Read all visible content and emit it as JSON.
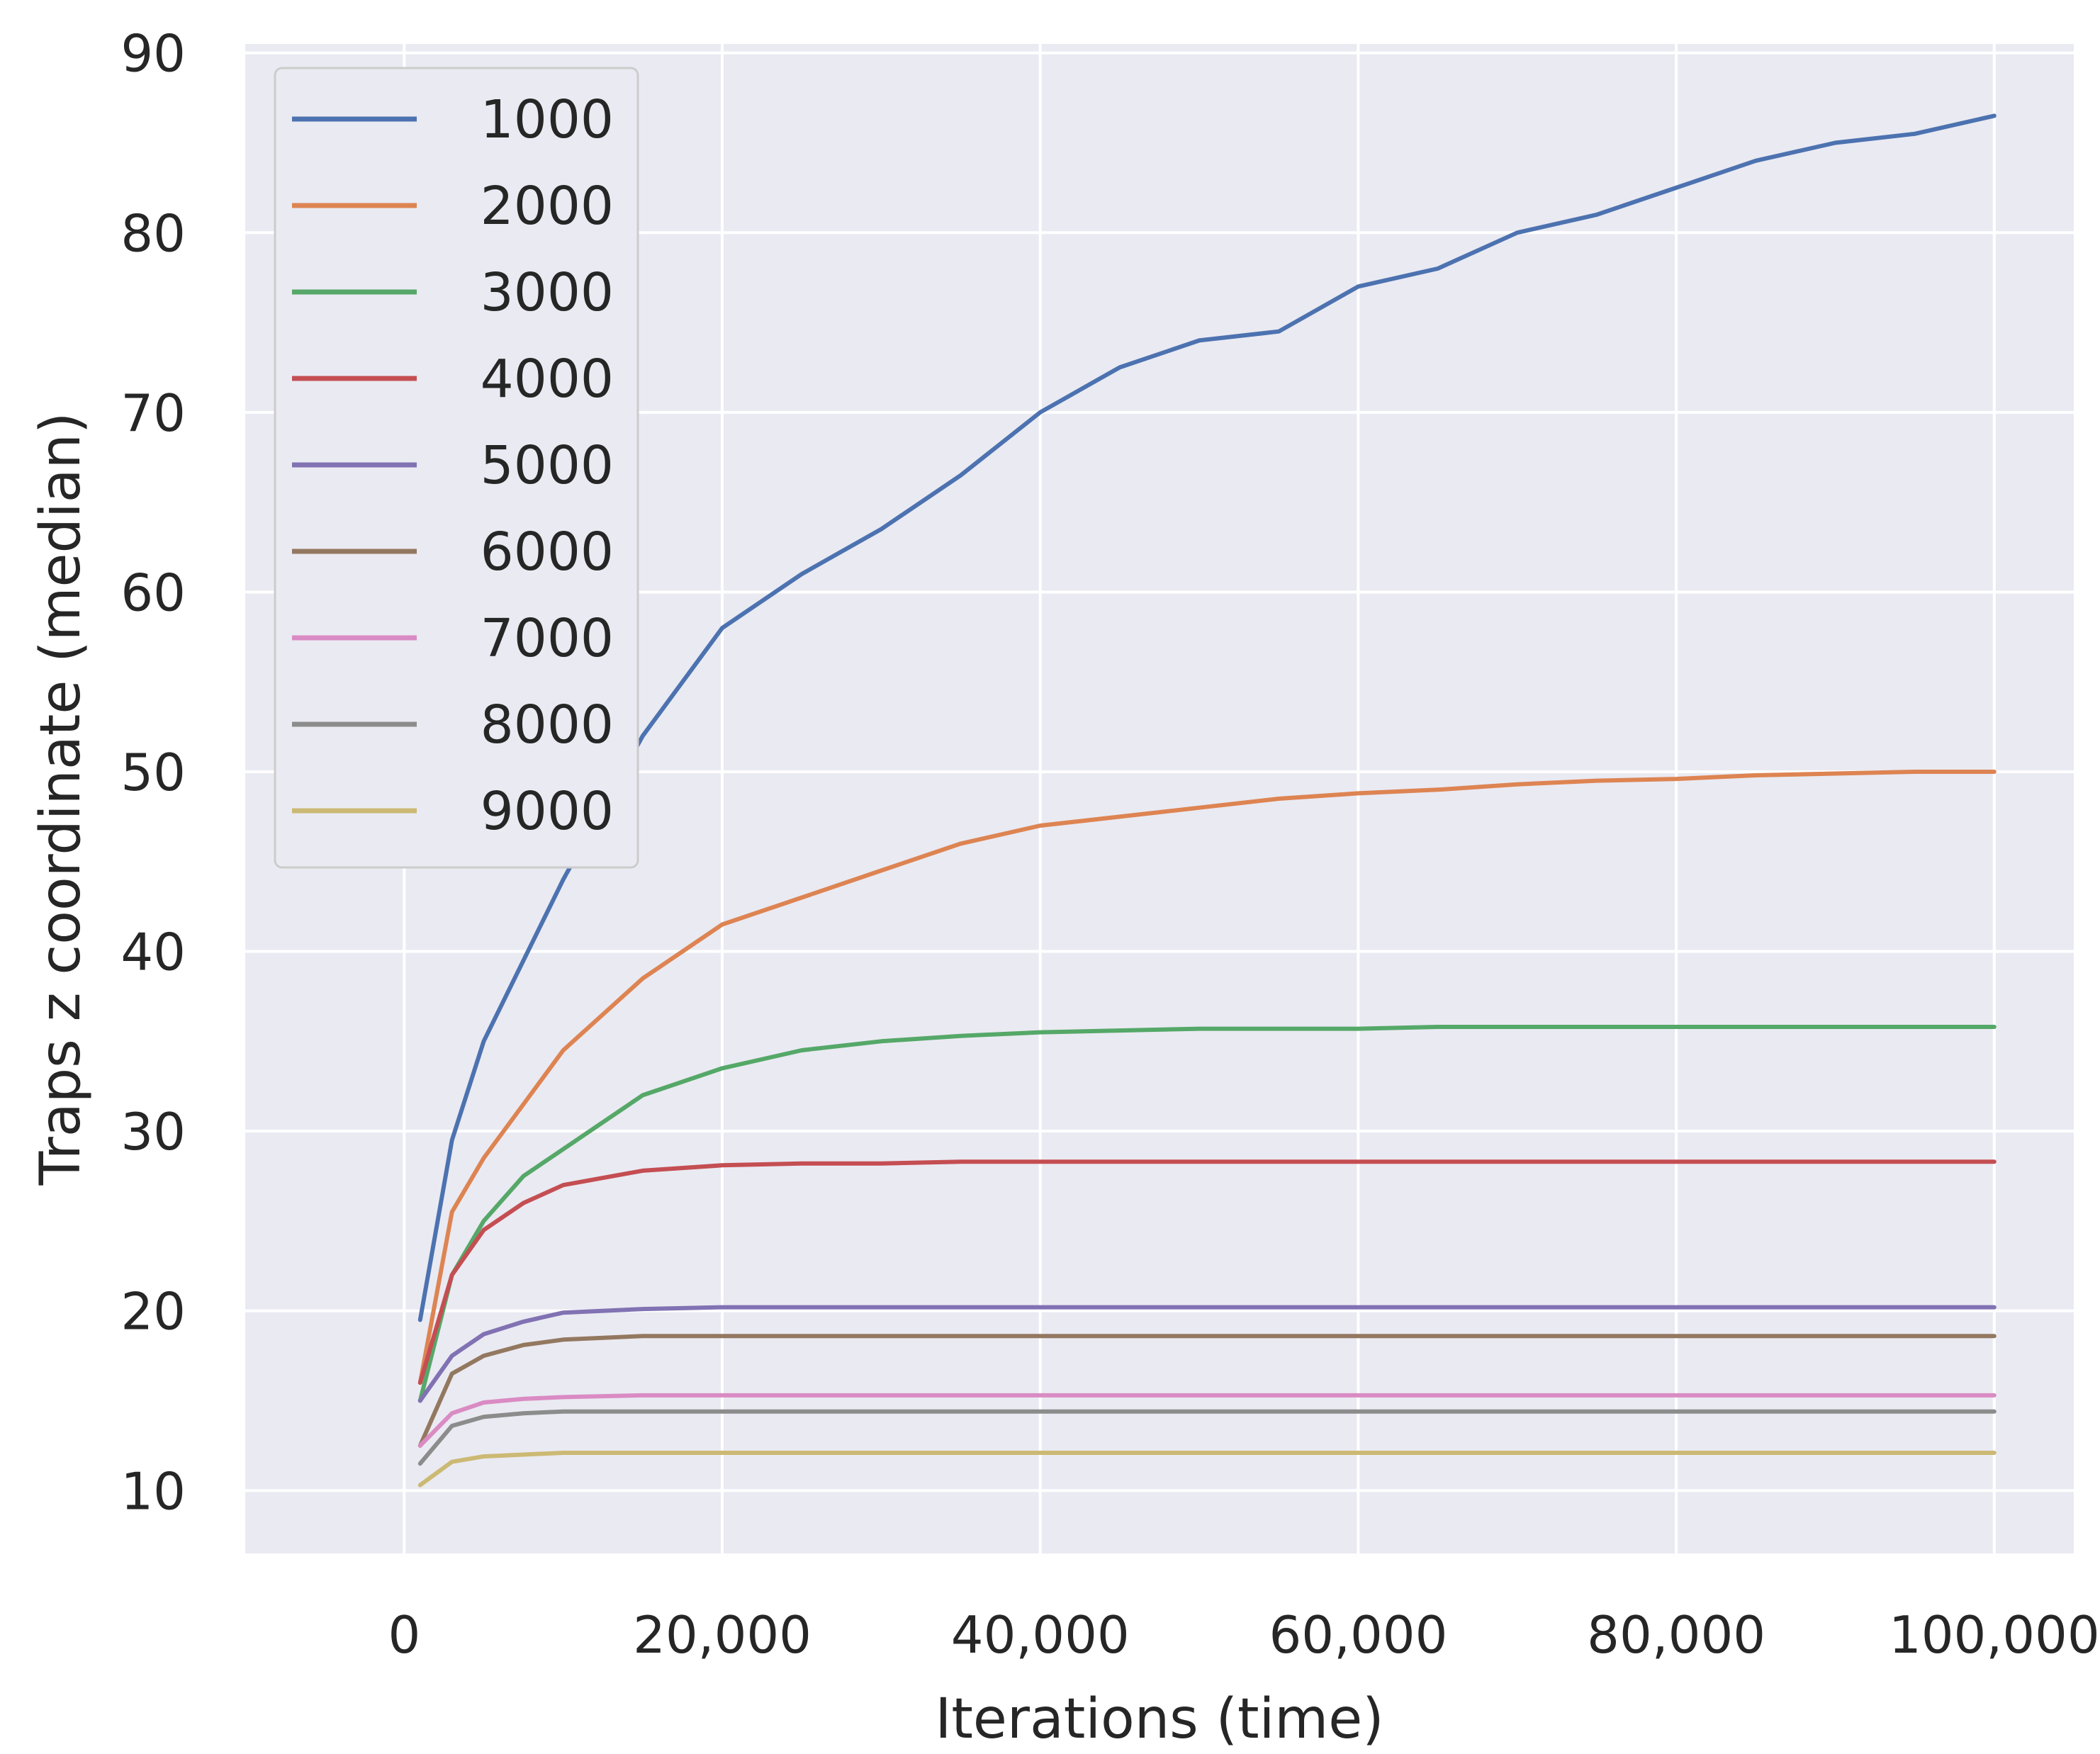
{
  "chart_data": {
    "type": "line",
    "title": "",
    "xlabel": "Iterations (time)",
    "ylabel": "Traps z coordinate (median)",
    "xlim": [
      -10000,
      105000
    ],
    "ylim": [
      6.5,
      90.5
    ],
    "xticks": [
      0,
      20000,
      40000,
      60000,
      80000,
      100000
    ],
    "xtick_labels": [
      "0",
      "20,000",
      "40,000",
      "60,000",
      "80,000",
      "100,000"
    ],
    "yticks": [
      10,
      20,
      30,
      40,
      50,
      60,
      70,
      80,
      90
    ],
    "ytick_labels": [
      "10",
      "20",
      "30",
      "40",
      "50",
      "60",
      "70",
      "80",
      "90"
    ],
    "grid": true,
    "legend": "upper-left",
    "x": [
      1000,
      3000,
      5000,
      7500,
      10000,
      15000,
      20000,
      25000,
      30000,
      35000,
      40000,
      45000,
      50000,
      55000,
      60000,
      65000,
      70000,
      75000,
      80000,
      85000,
      90000,
      95000,
      100000
    ],
    "series": [
      {
        "name": "1000",
        "color": "#4c72b0",
        "values": [
          19.5,
          29.5,
          35,
          39.5,
          44,
          52,
          58,
          61,
          63.5,
          66.5,
          70,
          72.5,
          74,
          74.5,
          77,
          78,
          80,
          81,
          82.5,
          84,
          85,
          85.5,
          86.5
        ]
      },
      {
        "name": "2000",
        "color": "#dd8452",
        "values": [
          16,
          25.5,
          28.5,
          31.5,
          34.5,
          38.5,
          41.5,
          43,
          44.5,
          46,
          47,
          47.5,
          48,
          48.5,
          48.8,
          49,
          49.3,
          49.5,
          49.6,
          49.8,
          49.9,
          50,
          50
        ]
      },
      {
        "name": "3000",
        "color": "#55a868",
        "values": [
          15,
          22,
          25,
          27.5,
          29,
          32,
          33.5,
          34.5,
          35,
          35.3,
          35.5,
          35.6,
          35.7,
          35.7,
          35.7,
          35.8,
          35.8,
          35.8,
          35.8,
          35.8,
          35.8,
          35.8,
          35.8
        ]
      },
      {
        "name": "4000",
        "color": "#c44e52",
        "values": [
          16,
          22,
          24.5,
          26,
          27,
          27.8,
          28.1,
          28.2,
          28.2,
          28.3,
          28.3,
          28.3,
          28.3,
          28.3,
          28.3,
          28.3,
          28.3,
          28.3,
          28.3,
          28.3,
          28.3,
          28.3,
          28.3
        ]
      },
      {
        "name": "5000",
        "color": "#8172b3",
        "values": [
          15,
          17.5,
          18.7,
          19.4,
          19.9,
          20.1,
          20.2,
          20.2,
          20.2,
          20.2,
          20.2,
          20.2,
          20.2,
          20.2,
          20.2,
          20.2,
          20.2,
          20.2,
          20.2,
          20.2,
          20.2,
          20.2,
          20.2
        ]
      },
      {
        "name": "6000",
        "color": "#937860",
        "values": [
          12.5,
          16.5,
          17.5,
          18.1,
          18.4,
          18.6,
          18.6,
          18.6,
          18.6,
          18.6,
          18.6,
          18.6,
          18.6,
          18.6,
          18.6,
          18.6,
          18.6,
          18.6,
          18.6,
          18.6,
          18.6,
          18.6,
          18.6
        ]
      },
      {
        "name": "7000",
        "color": "#da8bc3",
        "values": [
          12.5,
          14.3,
          14.9,
          15.1,
          15.2,
          15.3,
          15.3,
          15.3,
          15.3,
          15.3,
          15.3,
          15.3,
          15.3,
          15.3,
          15.3,
          15.3,
          15.3,
          15.3,
          15.3,
          15.3,
          15.3,
          15.3,
          15.3
        ]
      },
      {
        "name": "8000",
        "color": "#8c8c8c",
        "values": [
          11.5,
          13.6,
          14.1,
          14.3,
          14.4,
          14.4,
          14.4,
          14.4,
          14.4,
          14.4,
          14.4,
          14.4,
          14.4,
          14.4,
          14.4,
          14.4,
          14.4,
          14.4,
          14.4,
          14.4,
          14.4,
          14.4,
          14.4
        ]
      },
      {
        "name": "9000",
        "color": "#ccb974",
        "values": [
          10.3,
          11.6,
          11.9,
          12.0,
          12.1,
          12.1,
          12.1,
          12.1,
          12.1,
          12.1,
          12.1,
          12.1,
          12.1,
          12.1,
          12.1,
          12.1,
          12.1,
          12.1,
          12.1,
          12.1,
          12.1,
          12.1,
          12.1
        ]
      }
    ]
  }
}
